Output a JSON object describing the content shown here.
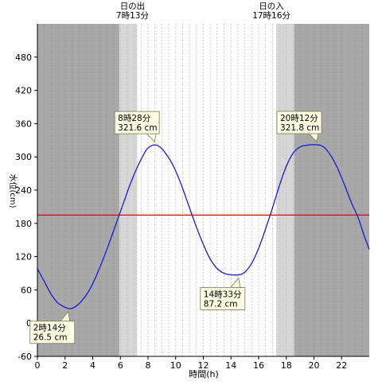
{
  "chart_data": {
    "type": "line",
    "xlabel": "時間(h)",
    "ylabel": "水位(cm)",
    "xlim": [
      0,
      24
    ],
    "ylim": [
      -60,
      540
    ],
    "x_ticks": [
      0,
      2,
      4,
      6,
      8,
      10,
      12,
      14,
      16,
      18,
      20,
      22
    ],
    "y_ticks": [
      -60,
      0,
      60,
      120,
      180,
      240,
      300,
      360,
      420,
      480
    ],
    "grid": {
      "vertical_minor_step_h": 0.5,
      "horizontal": false
    },
    "sun_events": [
      {
        "title": "日の出",
        "time_label": "7時13分",
        "time_h": 7.22
      },
      {
        "title": "日の入",
        "time_label": "17時16分",
        "time_h": 17.27
      }
    ],
    "night_shading": {
      "before_h": 7.22,
      "after_h": 17.27
    },
    "reference_line": {
      "y": 195,
      "color": "#e00000"
    },
    "series": [
      {
        "color": "#1a1ad6",
        "points": [
          [
            0,
            98
          ],
          [
            0.5,
            75
          ],
          [
            1,
            52
          ],
          [
            1.5,
            36
          ],
          [
            2.23,
            26.5
          ],
          [
            2.7,
            29
          ],
          [
            3.2,
            40
          ],
          [
            3.7,
            57
          ],
          [
            4.2,
            82
          ],
          [
            4.7,
            112
          ],
          [
            5.2,
            145
          ],
          [
            5.7,
            180
          ],
          [
            6.2,
            215
          ],
          [
            6.7,
            250
          ],
          [
            7.2,
            280
          ],
          [
            7.7,
            305
          ],
          [
            8.0,
            316
          ],
          [
            8.47,
            321.6
          ],
          [
            8.9,
            317
          ],
          [
            9.4,
            302
          ],
          [
            9.9,
            280
          ],
          [
            10.4,
            250
          ],
          [
            10.9,
            215
          ],
          [
            11.4,
            180
          ],
          [
            11.9,
            148
          ],
          [
            12.4,
            120
          ],
          [
            12.9,
            101
          ],
          [
            13.4,
            91
          ],
          [
            13.9,
            87.5
          ],
          [
            14.55,
            87.2
          ],
          [
            15.0,
            92
          ],
          [
            15.5,
            108
          ],
          [
            16.0,
            135
          ],
          [
            16.5,
            170
          ],
          [
            17.0,
            208
          ],
          [
            17.5,
            248
          ],
          [
            18.0,
            283
          ],
          [
            18.5,
            307
          ],
          [
            19.0,
            318
          ],
          [
            19.5,
            321
          ],
          [
            20.2,
            321.8
          ],
          [
            20.7,
            318
          ],
          [
            21.2,
            303
          ],
          [
            21.7,
            280
          ],
          [
            22.2,
            250
          ],
          [
            22.7,
            218
          ],
          [
            23.2,
            190
          ],
          [
            23.6,
            160
          ],
          [
            24,
            133
          ]
        ]
      }
    ],
    "annotations": [
      {
        "time": "8時28分",
        "level": "321.6 cm",
        "x": 8.47,
        "y": 321.6,
        "box": "above"
      },
      {
        "time": "14時33分",
        "level": "87.2 cm",
        "x": 14.55,
        "y": 87.2,
        "box": "below"
      },
      {
        "time": "20時12分",
        "level": "321.8 cm",
        "x": 20.2,
        "y": 321.8,
        "box": "above"
      },
      {
        "time": "2時14分",
        "level": "26.5 cm",
        "x": 2.23,
        "y": 26.5,
        "box": "below"
      }
    ],
    "colors": {
      "night": "#a8a8a8",
      "twilight": "#d6d6d6",
      "day": "#ffffff",
      "annotation_bg": "#fffde3",
      "reference": "#e00000",
      "curve": "#1a1ad6"
    }
  }
}
